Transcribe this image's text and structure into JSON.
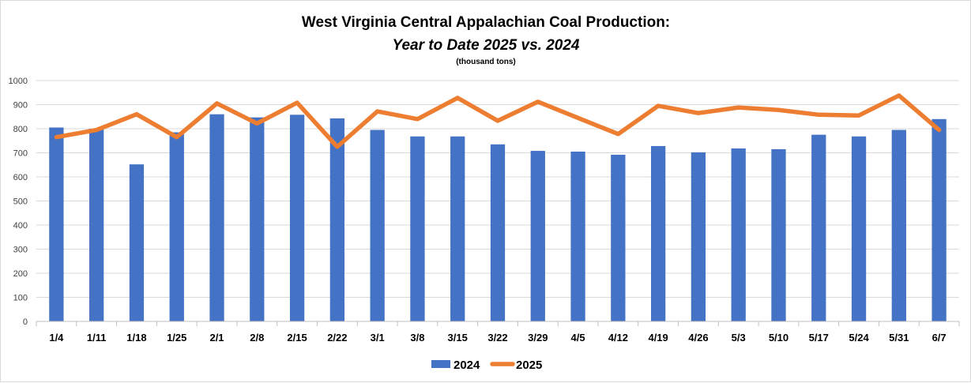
{
  "chart_data": {
    "type": "bar",
    "title": "West Virginia Central Appalachian Coal Production:",
    "subtitle": "Year to Date 2025 vs. 2024",
    "units_note": "(thousand tons)",
    "xlabel": "",
    "ylabel": "",
    "ylim": [
      0,
      1000
    ],
    "yticks": [
      0,
      100,
      200,
      300,
      400,
      500,
      600,
      700,
      800,
      900,
      1000
    ],
    "grid": true,
    "legend_position": "bottom",
    "categories": [
      "1/4",
      "1/11",
      "1/18",
      "1/25",
      "2/1",
      "2/8",
      "2/15",
      "2/22",
      "3/1",
      "3/8",
      "3/15",
      "3/22",
      "3/29",
      "4/5",
      "4/12",
      "4/19",
      "4/26",
      "5/3",
      "5/10",
      "5/17",
      "5/24",
      "5/31",
      "6/7"
    ],
    "series": [
      {
        "name": "2024",
        "type": "bar",
        "color": "#4472c4",
        "values": [
          805,
          800,
          652,
          785,
          860,
          847,
          858,
          843,
          795,
          768,
          768,
          735,
          708,
          705,
          692,
          728,
          702,
          718,
          715,
          775,
          768,
          795,
          840
        ]
      },
      {
        "name": "2025",
        "type": "line",
        "color": "#ed7d31",
        "values": [
          765,
          795,
          860,
          765,
          905,
          822,
          908,
          725,
          872,
          840,
          928,
          833,
          912,
          845,
          778,
          895,
          865,
          888,
          878,
          858,
          855,
          938,
          795
        ]
      }
    ]
  }
}
